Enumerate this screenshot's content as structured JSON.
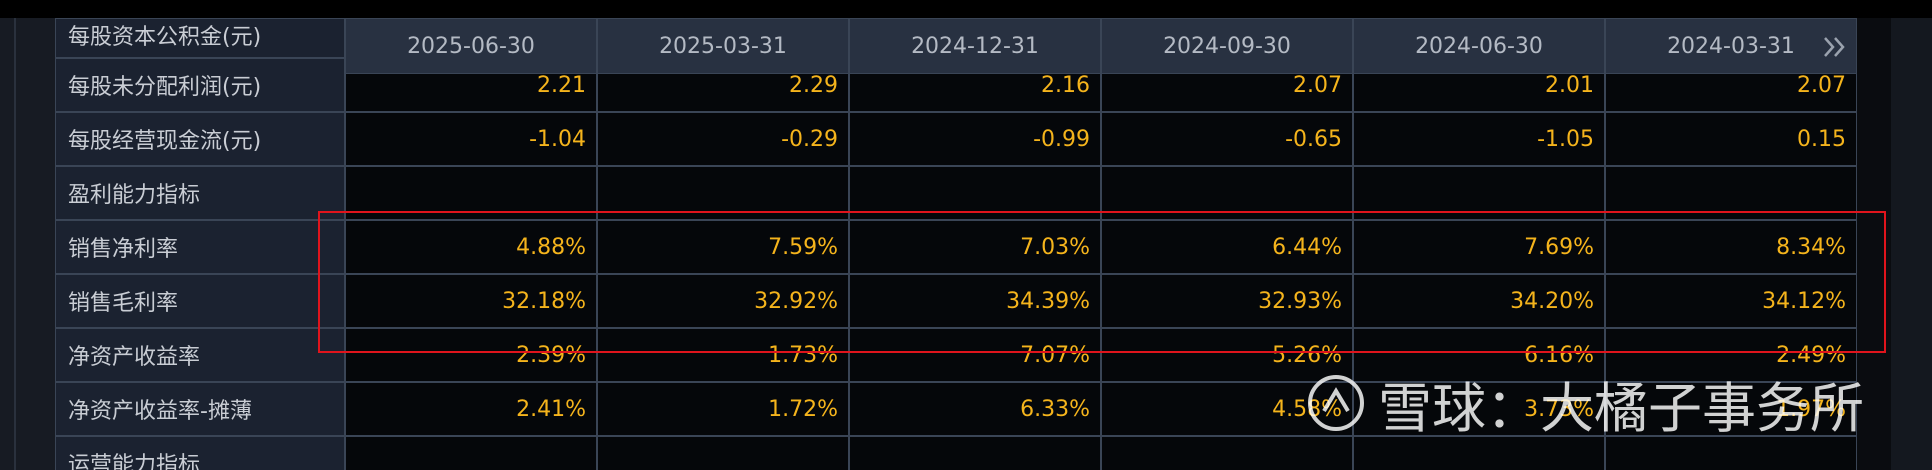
{
  "header": {
    "dates": [
      "2025-06-30",
      "2025-03-31",
      "2024-12-31",
      "2024-09-30",
      "2024-06-30",
      "2024-03-31"
    ]
  },
  "table": {
    "rows": [
      {
        "label": "每股资本公积金(元)"
      },
      {
        "label": "每股未分配利润(元)",
        "values": [
          "2.21",
          "2.29",
          "2.16",
          "2.07",
          "2.01",
          "2.07"
        ]
      },
      {
        "label": "每股经营现金流(元)",
        "values": [
          "-1.04",
          "-0.29",
          "-0.99",
          "-0.65",
          "-1.05",
          "0.15"
        ]
      },
      {
        "label": "盈利能力指标"
      },
      {
        "label": "销售净利率",
        "values": [
          "4.88%",
          "7.59%",
          "7.03%",
          "6.44%",
          "7.69%",
          "8.34%"
        ]
      },
      {
        "label": "销售毛利率",
        "values": [
          "32.18%",
          "32.92%",
          "34.39%",
          "32.93%",
          "34.20%",
          "34.12%"
        ]
      },
      {
        "label": "净资产收益率",
        "values": [
          "2.39%",
          "1.73%",
          "7.07%",
          "5.26%",
          "6.16%",
          "2.49%"
        ]
      },
      {
        "label": "净资产收益率-摊薄",
        "values": [
          "2.41%",
          "1.72%",
          "6.33%",
          "4.58%",
          "3.73%",
          "1.97%"
        ]
      },
      {
        "label": "运营能力指标"
      }
    ]
  },
  "watermark": "雪球：大橘子事务所"
}
